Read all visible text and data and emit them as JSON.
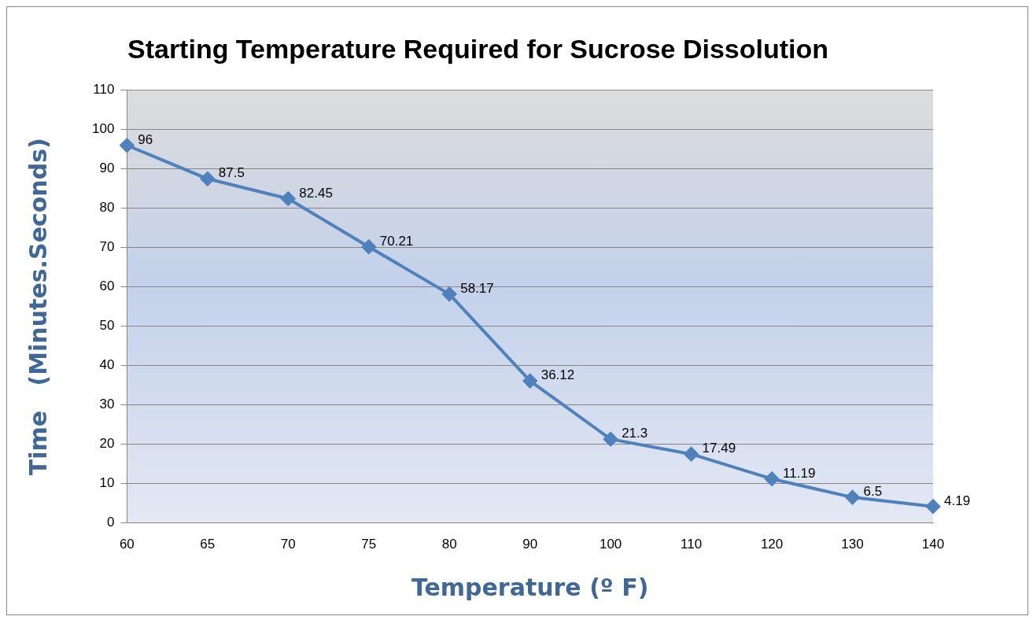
{
  "chart_data": {
    "type": "line",
    "title": "Starting Temperature Required for Sucrose Dissolution",
    "xlabel": "Temperature (º F)",
    "ylabel": "Time   (Minutes.Seconds)",
    "categories": [
      "60",
      "65",
      "70",
      "75",
      "80",
      "90",
      "100",
      "110",
      "120",
      "130",
      "140"
    ],
    "series": [
      {
        "color": "#4f81bd",
        "values": [
          96,
          87.5,
          82.45,
          70.21,
          58.17,
          36.12,
          21.3,
          17.49,
          11.19,
          6.5,
          4.19
        ]
      }
    ],
    "ylim": [
      0,
      110
    ],
    "yticks": [
      0,
      10,
      20,
      30,
      40,
      50,
      60,
      70,
      80,
      90,
      100,
      110
    ],
    "grid": "y",
    "legend": false,
    "marker": "diamond",
    "line_style": "solid",
    "data_labels": true
  }
}
